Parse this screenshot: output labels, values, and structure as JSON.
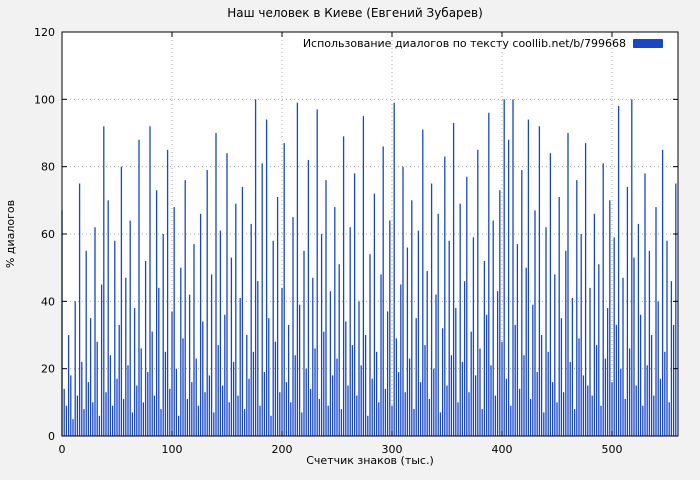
{
  "title": "Наш человек в Киеве (Евгений Зубарев)",
  "legend": {
    "label": "Использование диалогов по тексту coollib.net/b/799668",
    "color": "#1747c8"
  },
  "axes": {
    "ylabel": "% диалогов",
    "xlabel": "Счетчик знаков (тыс.)",
    "y_ticks": [
      0,
      20,
      40,
      60,
      80,
      100,
      120
    ],
    "x_ticks": [
      0,
      100,
      200,
      300,
      400,
      500
    ],
    "ylim": [
      0,
      120
    ],
    "xlim": [
      0,
      560
    ]
  },
  "colors": {
    "bar": "#1747c8",
    "background": "#f2f2f2",
    "plot_bg": "#ffffff",
    "grid": "#aaaaaa",
    "axis": "#000000"
  },
  "chart_data": {
    "type": "bar",
    "title": "Наш человек в Киеве (Евгений Зубарев)",
    "xlabel": "Счетчик знаков (тыс.)",
    "ylabel": "% диалогов",
    "legend": "Использование диалогов по тексту coollib.net/b/799668",
    "legend_position": "top-right",
    "grid": true,
    "ylim": [
      0,
      120
    ],
    "xlim": [
      0,
      560
    ],
    "x_start": 0,
    "x_step": 2,
    "values": [
      67,
      14,
      9,
      30,
      18,
      5,
      40,
      12,
      75,
      22,
      8,
      55,
      16,
      35,
      10,
      62,
      28,
      6,
      45,
      92,
      13,
      70,
      24,
      9,
      58,
      17,
      33,
      80,
      11,
      47,
      21,
      64,
      7,
      38,
      15,
      88,
      26,
      10,
      52,
      19,
      92,
      31,
      12,
      73,
      44,
      8,
      60,
      25,
      85,
      14,
      37,
      68,
      20,
      6,
      50,
      29,
      76,
      11,
      42,
      16,
      57,
      23,
      9,
      66,
      34,
      13,
      79,
      18,
      48,
      7,
      90,
      27,
      61,
      15,
      36,
      84,
      10,
      53,
      22,
      69,
      12,
      41,
      74,
      8,
      30,
      17,
      63,
      25,
      100,
      46,
      9,
      81,
      19,
      94,
      35,
      6,
      58,
      28,
      71,
      13,
      44,
      87,
      16,
      33,
      10,
      65,
      24,
      99,
      39,
      7,
      55,
      20,
      82,
      14,
      47,
      26,
      97,
      11,
      60,
      31,
      76,
      9,
      43,
      18,
      68,
      23,
      51,
      8,
      89,
      34,
      15,
      62,
      27,
      78,
      12,
      40,
      21,
      95,
      30,
      6,
      54,
      17,
      72,
      25,
      10,
      48,
      86,
      14,
      37,
      64,
      9,
      99,
      29,
      19,
      45,
      80,
      13,
      56,
      23,
      70,
      8,
      35,
      61,
      16,
      91,
      27,
      49,
      11,
      75,
      20,
      42,
      66,
      7,
      32,
      83,
      15,
      58,
      24,
      93,
      38,
      10,
      69,
      22,
      46,
      77,
      13,
      31,
      59,
      18,
      85,
      26,
      8,
      52,
      36,
      96,
      21,
      64,
      12,
      43,
      73,
      28,
      100,
      17,
      88,
      9,
      100,
      33,
      57,
      14,
      79,
      24,
      50,
      94,
      11,
      39,
      67,
      19,
      92,
      30,
      7,
      62,
      25,
      84,
      16,
      48,
      10,
      71,
      35,
      13,
      55,
      90,
      22,
      41,
      8,
      76,
      29,
      60,
      18,
      87,
      15,
      44,
      12,
      66,
      27,
      51,
      9,
      81,
      23,
      38,
      70,
      16,
      59,
      33,
      98,
      20,
      47,
      11,
      74,
      26,
      100,
      53,
      15,
      63,
      36,
      9,
      78,
      21,
      55,
      30,
      12,
      68,
      40,
      17,
      85,
      25,
      58,
      10,
      46,
      33,
      75
    ]
  }
}
